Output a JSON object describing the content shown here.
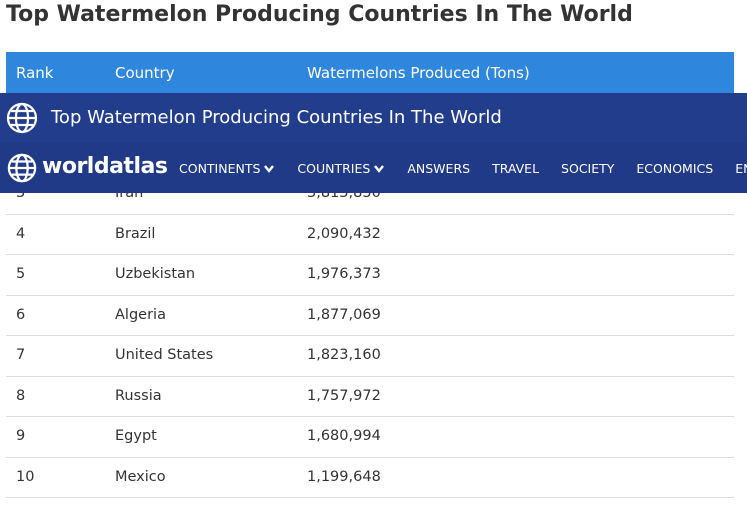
{
  "header": {
    "title": "Top Watermelon Producing Countries In The World"
  },
  "table": {
    "columns": [
      "Rank",
      "Country",
      "Watermelons Produced (Tons)"
    ],
    "rows": [
      [
        "3",
        "Iran",
        "3,813,850"
      ],
      [
        "4",
        "Brazil",
        "2,090,432"
      ],
      [
        "5",
        "Uzbekistan",
        "1,976,373"
      ],
      [
        "6",
        "Algeria",
        "1,877,069"
      ],
      [
        "7",
        "United States",
        "1,823,160"
      ],
      [
        "8",
        "Russia",
        "1,757,972"
      ],
      [
        "9",
        "Egypt",
        "1,680,994"
      ],
      [
        "10",
        "Mexico",
        "1,199,648"
      ]
    ]
  },
  "sticky": {
    "title": "Top Watermelon Producing Countries In The World"
  },
  "nav": {
    "logo": "worldatlas",
    "items": [
      "CONTINENTS",
      "COUNTRIES",
      "ANSWERS",
      "TRAVEL",
      "SOCIETY",
      "ECONOMICS",
      "ENVIRONMENT"
    ]
  }
}
